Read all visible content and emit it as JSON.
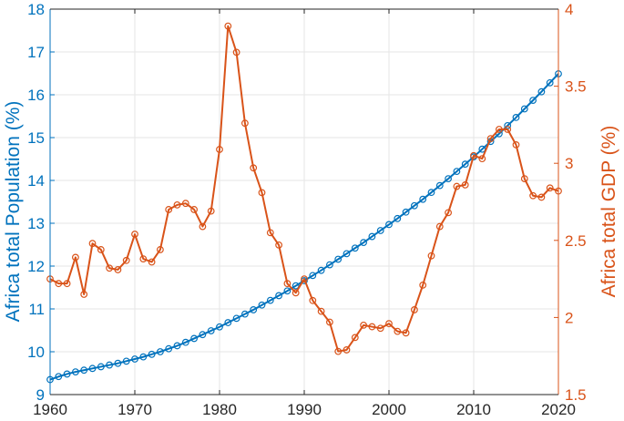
{
  "chart_data": {
    "type": "line",
    "xlabel": "",
    "x_ticks": [
      "1960",
      "1970",
      "1980",
      "1990",
      "2000",
      "2010",
      "2020"
    ],
    "xlim": [
      1960,
      2020
    ],
    "left_axis": {
      "label": "Africa total Population (%)",
      "ylim": [
        9,
        18
      ],
      "ticks": [
        "9",
        "10",
        "11",
        "12",
        "13",
        "14",
        "15",
        "16",
        "17",
        "18"
      ],
      "color": "#0072BD"
    },
    "right_axis": {
      "label": "Africa total GDP (%)",
      "ylim": [
        1.5,
        4
      ],
      "ticks": [
        "1.5",
        "2",
        "2.5",
        "3",
        "3.5",
        "4"
      ],
      "color": "#D95319"
    },
    "grid": true,
    "marker": "circle",
    "x": [
      1960,
      1961,
      1962,
      1963,
      1964,
      1965,
      1966,
      1967,
      1968,
      1969,
      1970,
      1971,
      1972,
      1973,
      1974,
      1975,
      1976,
      1977,
      1978,
      1979,
      1980,
      1981,
      1982,
      1983,
      1984,
      1985,
      1986,
      1987,
      1988,
      1989,
      1990,
      1991,
      1992,
      1993,
      1994,
      1995,
      1996,
      1997,
      1998,
      1999,
      2000,
      2001,
      2002,
      2003,
      2004,
      2005,
      2006,
      2007,
      2008,
      2009,
      2010,
      2011,
      2012,
      2013,
      2014,
      2015,
      2016,
      2017,
      2018,
      2019,
      2020
    ],
    "series": [
      {
        "axis": "left",
        "values": [
          9.35,
          9.42,
          9.48,
          9.53,
          9.57,
          9.61,
          9.65,
          9.69,
          9.73,
          9.78,
          9.83,
          9.88,
          9.94,
          10.0,
          10.07,
          10.14,
          10.22,
          10.31,
          10.4,
          10.49,
          10.58,
          10.68,
          10.78,
          10.88,
          10.98,
          11.09,
          11.2,
          11.31,
          11.42,
          11.54,
          11.66,
          11.78,
          11.9,
          12.03,
          12.16,
          12.29,
          12.42,
          12.55,
          12.69,
          12.83,
          12.97,
          13.11,
          13.26,
          13.41,
          13.56,
          13.72,
          13.88,
          14.04,
          14.21,
          14.38,
          14.55,
          14.73,
          14.91,
          15.09,
          15.28,
          15.47,
          15.67,
          15.87,
          16.07,
          16.28,
          16.49
        ]
      },
      {
        "axis": "right",
        "values": [
          2.25,
          2.22,
          2.22,
          2.39,
          2.15,
          2.48,
          2.44,
          2.32,
          2.31,
          2.37,
          2.54,
          2.38,
          2.36,
          2.44,
          2.7,
          2.73,
          2.74,
          2.7,
          2.59,
          2.69,
          3.09,
          3.89,
          3.72,
          3.26,
          2.97,
          2.81,
          2.55,
          2.47,
          2.22,
          2.16,
          2.25,
          2.11,
          2.04,
          1.97,
          1.78,
          1.79,
          1.87,
          1.95,
          1.94,
          1.93,
          1.96,
          1.91,
          1.9,
          2.05,
          2.21,
          2.4,
          2.59,
          2.68,
          2.85,
          2.86,
          3.05,
          3.03,
          3.16,
          3.22,
          3.22,
          3.12,
          2.9,
          2.79,
          2.78,
          2.84,
          2.82
        ]
      }
    ]
  }
}
